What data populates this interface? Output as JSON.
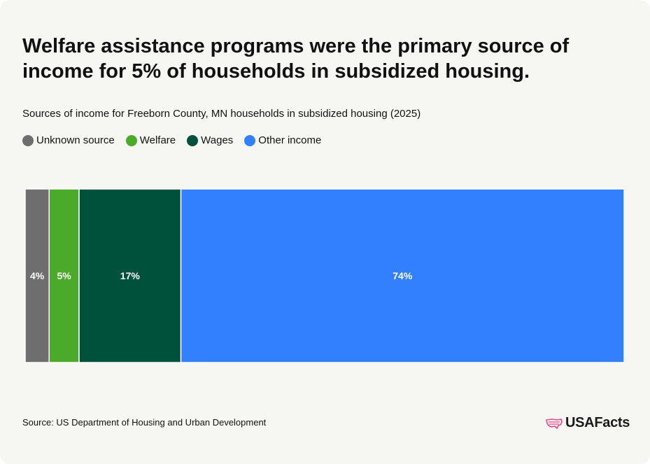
{
  "title": "Welfare assistance programs were the primary source of income for 5% of households in subsidized housing.",
  "source": "Source: US Department of Housing and Urban Development",
  "logo": {
    "text": "USAFacts",
    "icon": "usa-map-icon",
    "color": "#e9478b"
  },
  "chart_data": {
    "type": "bar",
    "orientation": "horizontal-stacked-100",
    "title": "Sources of income for Freeborn County, MN households in subsidized housing (2025)",
    "legend_position": "top-left",
    "series": [
      {
        "name": "Unknown source",
        "value": 4,
        "label": "4%",
        "color": "#6e6e6e"
      },
      {
        "name": "Welfare",
        "value": 5,
        "label": "5%",
        "color": "#4caa2a"
      },
      {
        "name": "Wages",
        "value": 17,
        "label": "17%",
        "color": "#00513c"
      },
      {
        "name": "Other income",
        "value": 74,
        "label": "74%",
        "color": "#3380ff"
      }
    ]
  }
}
